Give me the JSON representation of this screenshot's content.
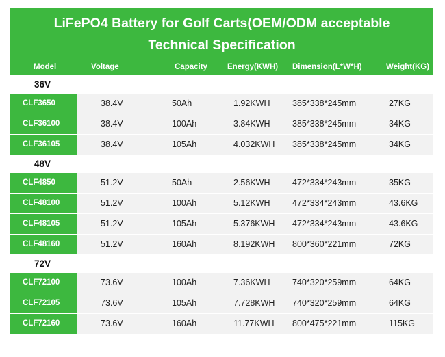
{
  "title_line1": "LiFePO4 Battery for Golf Carts(OEM/ODM acceptable",
  "title_line2": "Technical Specification",
  "headers": [
    "Model",
    "Voltage",
    "Capacity",
    "Energy(KWH)",
    "Dimension(L*W*H)",
    "Weight(KG)"
  ],
  "colors": {
    "accent_green": "#3db83f",
    "row_bg": "#f2f2f2"
  },
  "groups": [
    {
      "label": "36V",
      "rows": [
        [
          "CLF3650",
          "38.4V",
          "50Ah",
          "1.92KWH",
          "385*338*245mm",
          "27KG"
        ],
        [
          "CLF36100",
          "38.4V",
          "100Ah",
          "3.84KWH",
          "385*338*245mm",
          "34KG"
        ],
        [
          "CLF36105",
          "38.4V",
          "105Ah",
          "4.032KWH",
          "385*338*245mm",
          "34KG"
        ]
      ]
    },
    {
      "label": "48V",
      "rows": [
        [
          "CLF4850",
          "51.2V",
          "50Ah",
          "2.56KWH",
          "472*334*243mm",
          "35KG"
        ],
        [
          "CLF48100",
          "51.2V",
          "100Ah",
          "5.12KWH",
          "472*334*243mm",
          "43.6KG"
        ],
        [
          "CLF48105",
          "51.2V",
          "105Ah",
          "5.376KWH",
          "472*334*243mm",
          "43.6KG"
        ],
        [
          "CLF48160",
          "51.2V",
          "160Ah",
          "8.192KWH",
          "800*360*221mm",
          "72KG"
        ]
      ]
    },
    {
      "label": "72V",
      "rows": [
        [
          "CLF72100",
          "73.6V",
          "100Ah",
          "7.36KWH",
          "740*320*259mm",
          "64KG"
        ],
        [
          "CLF72105",
          "73.6V",
          "105Ah",
          "7.728KWH",
          "740*320*259mm",
          "64KG"
        ],
        [
          "CLF72160",
          "73.6V",
          "160Ah",
          "11.77KWH",
          "800*475*221mm",
          "115KG"
        ]
      ]
    }
  ]
}
